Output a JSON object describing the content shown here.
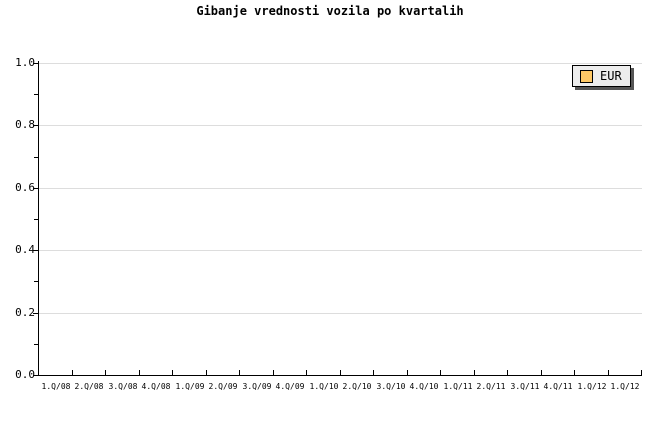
{
  "title": "Gibanje vrednosti vozila po kvartalih",
  "chart_data": {
    "type": "line",
    "title": "Gibanje vrednosti vozila po kvartalih",
    "xlabel": "",
    "ylabel": "",
    "categories": [
      "1.Q/08",
      "2.Q/08",
      "3.Q/08",
      "4.Q/08",
      "1.Q/09",
      "2.Q/09",
      "3.Q/09",
      "4.Q/09",
      "1.Q/10",
      "2.Q/10",
      "3.Q/10",
      "4.Q/10",
      "1.Q/11",
      "2.Q/11",
      "3.Q/11",
      "4.Q/11",
      "1.Q/12",
      "1.Q/12"
    ],
    "series": [
      {
        "name": "EUR",
        "color": "#FFC966",
        "values": []
      }
    ],
    "plot_is_empty": true,
    "ylim": [
      0.0,
      1.0
    ],
    "y_major_step": 0.2,
    "y_minor_step": 0.1,
    "y_tick_labels": [
      "1.0",
      "0.8",
      "0.6",
      "0.4",
      "0.2",
      "0.0"
    ],
    "grid": "horizontal gridlines at major y ticks",
    "legend": {
      "position": "top-right",
      "entries": [
        {
          "label": "EUR",
          "swatch_color": "#FFC966"
        }
      ]
    },
    "colors": {
      "background": "#FFFFFF",
      "axis": "#000000",
      "text": "#000000",
      "gridline": "#DDDDDD",
      "legend_background": "#EDEDED",
      "legend_border": "#000000",
      "legend_shadow": "#565656"
    }
  }
}
